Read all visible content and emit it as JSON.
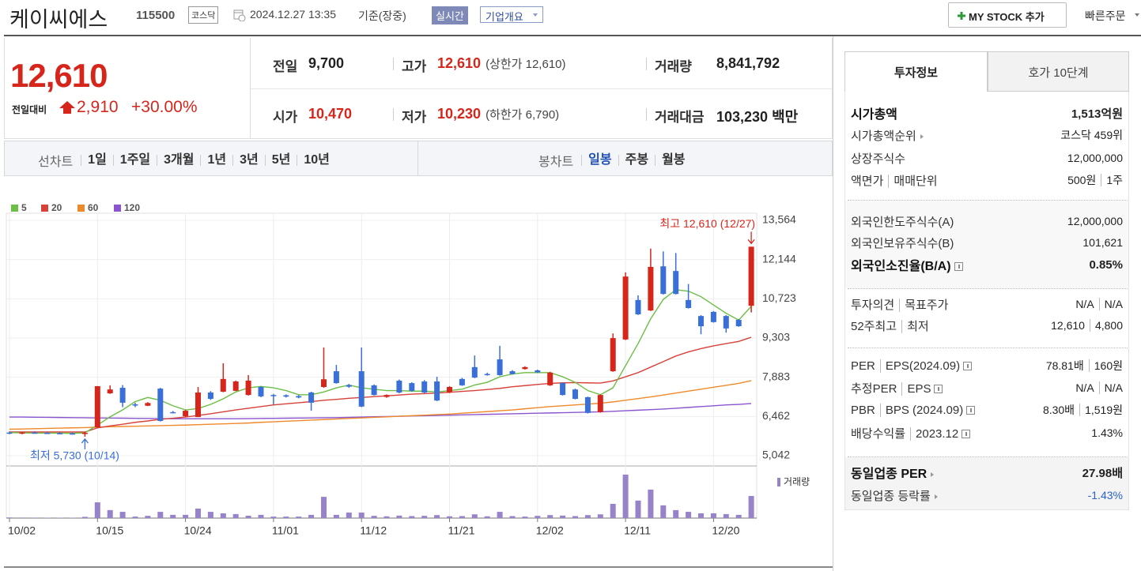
{
  "header": {
    "name": "케이씨에스",
    "code": "115500",
    "market": "코스닥",
    "datetime": "2024.12.27 13:35",
    "basis": "기준(장중)",
    "realtime": "실시간",
    "overview": "기업개요",
    "mystock": "MY STOCK 추가",
    "quick": "빠른주문"
  },
  "price": {
    "current": "12,610",
    "change_label": "전일대비",
    "change": "2,910",
    "rate": "+30.00%"
  },
  "stats": [
    {
      "label": "전일",
      "value": "9,700"
    },
    {
      "label": "고가",
      "value": "12,610",
      "color": "#d6261c",
      "note": "(상한가 12,610)"
    },
    {
      "label": "거래량",
      "value": "8,841,792"
    },
    {
      "label": "시가",
      "value": "10,470",
      "color": "#d6261c"
    },
    {
      "label": "저가",
      "value": "10,230",
      "color": "#d6261c",
      "note": "(하한가 6,790)"
    },
    {
      "label": "거래대금",
      "value": "103,230 백만"
    }
  ],
  "chart_tabs": {
    "line_label": "선차트",
    "line_items": [
      "1일",
      "1주일",
      "3개월",
      "1년",
      "3년",
      "5년",
      "10년"
    ],
    "candle_label": "봉차트",
    "candle_items": [
      "일봉",
      "주봉",
      "월봉"
    ],
    "selected_color": "#1f4fb8"
  },
  "side": {
    "tabs": [
      "투자정보",
      "호가 10단계"
    ],
    "groups": [
      [
        {
          "label": "시가총액",
          "value": "1,513",
          "unit": "억원",
          "strong": true
        },
        {
          "label": "시가총액순위",
          "value": "코스닥 459위",
          "arrow": true
        },
        {
          "label": "상장주식수",
          "value": "12,000,000"
        },
        {
          "label": [
            "액면가",
            "매매단위"
          ],
          "value": [
            "500원",
            "1주"
          ]
        }
      ],
      [
        {
          "label": "외국인한도주식수(A)",
          "value": "12,000,000"
        },
        {
          "label": "외국인보유주식수(B)",
          "value": "101,621"
        },
        {
          "label": "외국인소진율(B/A)",
          "value": "0.85%",
          "strong": true,
          "help": true
        }
      ],
      [
        {
          "label": [
            "투자의견",
            "목표주가"
          ],
          "value": [
            "N/A",
            "N/A"
          ]
        },
        {
          "label": [
            "52주최고",
            "최저"
          ],
          "value": [
            "12,610",
            "4,800"
          ]
        }
      ],
      [
        {
          "label": [
            "PER",
            "EPS(2024.09)"
          ],
          "value": [
            "78.81배",
            "160원"
          ],
          "help": true
        },
        {
          "label": [
            "추정PER",
            "EPS"
          ],
          "value": [
            "N/A",
            "N/A"
          ],
          "help": true
        },
        {
          "label": [
            "PBR",
            "BPS (2024.09)"
          ],
          "value": [
            "8.30배",
            "1,519원"
          ],
          "help": true
        },
        {
          "label": [
            "배당수익률",
            "2023.12"
          ],
          "value": "1.43%",
          "help": true
        }
      ],
      [
        {
          "label": "동일업종 PER",
          "value": "27.98배",
          "strong": true,
          "arrow": true
        },
        {
          "label": "동일업종 등락률",
          "value": "-1.43%",
          "color": "#2a62c9",
          "arrow": true
        }
      ]
    ]
  },
  "chart_data": {
    "type": "candlestick",
    "up_color": "#d6261c",
    "down_color": "#3a6fd8",
    "categories": [
      "10/02",
      null,
      null,
      null,
      null,
      null,
      null,
      "10/15",
      null,
      null,
      null,
      null,
      null,
      null,
      "10/24",
      null,
      null,
      null,
      null,
      null,
      null,
      "11/01",
      null,
      null,
      null,
      null,
      null,
      null,
      "11/12",
      null,
      null,
      null,
      null,
      null,
      null,
      "11/21",
      null,
      null,
      null,
      null,
      null,
      null,
      "12/02",
      null,
      null,
      null,
      null,
      null,
      null,
      "12/11",
      null,
      null,
      null,
      null,
      null,
      null,
      "12/20",
      null,
      null,
      null
    ],
    "open": [
      5880,
      5860,
      5880,
      5870,
      5860,
      5850,
      5830,
      6070,
      7300,
      7500,
      6900,
      6850,
      7470,
      6620,
      6470,
      6440,
      7330,
      7360,
      7390,
      7240,
      7530,
      7240,
      7230,
      7200,
      7330,
      7530,
      8100,
      7600,
      8100,
      7590,
      7170,
      7760,
      7670,
      7730,
      7730,
      7330,
      7820,
      8250,
      8000,
      8530,
      8100,
      8180,
      8130,
      7590,
      7670,
      7440,
      7160,
      6620,
      8100,
      9250,
      10680,
      10300,
      11900,
      11730,
      10680,
      10100,
      10250,
      10100,
      9960,
      10470
    ],
    "high": [
      5920,
      5900,
      5920,
      5900,
      5890,
      5880,
      5900,
      7560,
      7590,
      7600,
      6960,
      6980,
      7500,
      6660,
      6700,
      7530,
      7380,
      8390,
      7760,
      7960,
      7560,
      7280,
      7260,
      7240,
      7360,
      8960,
      8330,
      7640,
      8960,
      7620,
      7260,
      7800,
      7700,
      7780,
      7900,
      7560,
      7860,
      8670,
      8050,
      9020,
      8140,
      8280,
      8160,
      8080,
      7700,
      7470,
      7180,
      7260,
      9470,
      11680,
      10850,
      12540,
      12440,
      12380,
      11260,
      10130,
      10280,
      10130,
      9990,
      12610
    ],
    "low": [
      5820,
      5820,
      5840,
      5830,
      5820,
      5800,
      5730,
      6070,
      7280,
      6800,
      6800,
      6840,
      6280,
      6580,
      6440,
      6440,
      7060,
      7340,
      7380,
      7220,
      7160,
      6900,
      7150,
      7120,
      6670,
      7500,
      7650,
      7500,
      6800,
      7220,
      7140,
      7300,
      7360,
      7300,
      7020,
      7310,
      7570,
      7850,
      7940,
      7940,
      7980,
      8160,
      8040,
      7570,
      7220,
      7080,
      6570,
      6600,
      8080,
      9230,
      10140,
      10280,
      10880,
      10880,
      10370,
      9440,
      9860,
      9500,
      9710,
      10230
    ],
    "close": [
      5850,
      5880,
      5860,
      5860,
      5840,
      5830,
      5870,
      7560,
      7440,
      6960,
      6860,
      6950,
      6300,
      6600,
      6670,
      7330,
      7100,
      7820,
      7730,
      7760,
      7190,
      7200,
      7180,
      7150,
      6960,
      7810,
      7670,
      7540,
      6820,
      7240,
      7240,
      7330,
      7390,
      7330,
      7040,
      7530,
      7590,
      7870,
      7960,
      7960,
      8000,
      8250,
      8060,
      8050,
      7240,
      7100,
      6590,
      7240,
      9300,
      11530,
      10160,
      11880,
      10900,
      10900,
      10390,
      9730,
      9880,
      9650,
      9730,
      12610
    ],
    "series": [
      {
        "name": "5",
        "color": "#6cbf45",
        "values": [
          5880,
          5870,
          5860,
          5860,
          5860,
          5850,
          5870,
          6150,
          6450,
          6700,
          7000,
          7150,
          7050,
          6850,
          6700,
          6750,
          6900,
          7100,
          7350,
          7500,
          7550,
          7500,
          7400,
          7250,
          7250,
          7350,
          7500,
          7600,
          7500,
          7450,
          7400,
          7400,
          7380,
          7380,
          7350,
          7400,
          7450,
          7600,
          7700,
          7900,
          8000,
          8050,
          8050,
          8050,
          7900,
          7700,
          7400,
          7250,
          7500,
          8300,
          9100,
          10000,
          10700,
          11050,
          11000,
          10800,
          10500,
          10200,
          9950,
          10450
        ]
      },
      {
        "name": "20",
        "color": "#d8413a",
        "values": [
          5900,
          5900,
          5900,
          5900,
          5900,
          5900,
          5900,
          6050,
          6120,
          6180,
          6250,
          6300,
          6360,
          6400,
          6440,
          6500,
          6560,
          6630,
          6700,
          6760,
          6820,
          6880,
          6920,
          6960,
          7000,
          7050,
          7080,
          7120,
          7150,
          7180,
          7210,
          7240,
          7270,
          7290,
          7310,
          7340,
          7370,
          7400,
          7440,
          7480,
          7540,
          7580,
          7620,
          7660,
          7680,
          7690,
          7680,
          7670,
          7750,
          7900,
          8050,
          8250,
          8450,
          8650,
          8800,
          8920,
          9020,
          9100,
          9180,
          9330
        ]
      },
      {
        "name": "60",
        "color": "#ee8a2a",
        "values": [
          6000,
          6010,
          6020,
          6030,
          6040,
          6050,
          6060,
          6075,
          6090,
          6100,
          6110,
          6120,
          6130,
          6140,
          6150,
          6165,
          6180,
          6195,
          6210,
          6225,
          6250,
          6270,
          6290,
          6310,
          6330,
          6350,
          6370,
          6390,
          6410,
          6430,
          6450,
          6470,
          6490,
          6510,
          6530,
          6550,
          6580,
          6610,
          6640,
          6670,
          6700,
          6740,
          6780,
          6820,
          6850,
          6880,
          6910,
          6940,
          6990,
          7050,
          7110,
          7170,
          7240,
          7310,
          7380,
          7450,
          7520,
          7590,
          7660,
          7760
        ]
      },
      {
        "name": "120",
        "color": "#8a55cf",
        "values": [
          6440,
          6440,
          6435,
          6430,
          6425,
          6420,
          6415,
          6410,
          6405,
          6400,
          6395,
          6390,
          6385,
          6380,
          6380,
          6380,
          6380,
          6380,
          6380,
          6385,
          6390,
          6395,
          6400,
          6405,
          6410,
          6415,
          6420,
          6430,
          6440,
          6450,
          6460,
          6470,
          6480,
          6490,
          6500,
          6510,
          6520,
          6530,
          6540,
          6550,
          6560,
          6570,
          6580,
          6590,
          6600,
          6610,
          6620,
          6630,
          6650,
          6670,
          6690,
          6710,
          6730,
          6760,
          6790,
          6820,
          6850,
          6880,
          6900,
          6930
        ]
      }
    ],
    "ylim": [
      4670,
      13822
    ],
    "yticks": [
      {
        "value": 5042,
        "label": "5,042"
      },
      {
        "value": 6462,
        "label": "6,462"
      },
      {
        "value": 7883,
        "label": "7,883"
      },
      {
        "value": 9303,
        "label": "9,303"
      },
      {
        "value": 10723,
        "label": "10,723"
      },
      {
        "value": 12144,
        "label": "12,144"
      },
      {
        "value": 13564,
        "label": "13,564"
      }
    ],
    "grid": true,
    "high_label": "최고 12,610 (12/27)",
    "low_label": "최저 5,730 (10/14)",
    "volume": {
      "name": "거래량",
      "color": "#9683c9",
      "ylim": [
        0,
        17700000
      ],
      "values": [
        250000,
        200000,
        180000,
        150000,
        160000,
        150000,
        500000,
        6300000,
        3200000,
        2500000,
        600000,
        900000,
        2500000,
        1300000,
        1300000,
        3800000,
        2500000,
        1900000,
        1600000,
        950000,
        1300000,
        600000,
        600000,
        600000,
        1300000,
        8500000,
        1300000,
        2200000,
        2200000,
        900000,
        700000,
        1000000,
        800000,
        900000,
        1200000,
        700000,
        800000,
        1500000,
        700000,
        2500000,
        800000,
        600000,
        900000,
        1200000,
        1000000,
        800000,
        1200000,
        1500000,
        5700000,
        17400000,
        7000000,
        11400000,
        5100000,
        3200000,
        2500000,
        1900000,
        1900000,
        1600000,
        1300000,
        8841792
      ]
    }
  }
}
